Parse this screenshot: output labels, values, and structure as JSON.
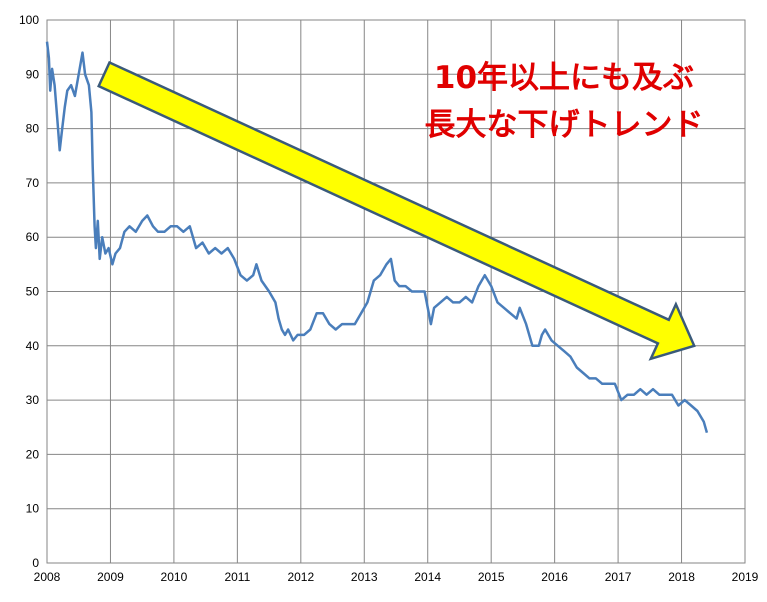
{
  "chart_data": {
    "type": "line",
    "title": "",
    "xlabel": "",
    "ylabel": "",
    "xlim": [
      2008,
      2019
    ],
    "ylim": [
      0,
      100
    ],
    "grid": true,
    "x_ticks": [
      "2008",
      "2009",
      "2010",
      "2011",
      "2012",
      "2013",
      "2014",
      "2015",
      "2016",
      "2017",
      "2018",
      "2019"
    ],
    "y_ticks": [
      "0",
      "10",
      "20",
      "30",
      "40",
      "50",
      "60",
      "70",
      "80",
      "90",
      "100"
    ],
    "series": [
      {
        "color": "#4a7ebb",
        "points": [
          [
            2008.0,
            96
          ],
          [
            2008.03,
            93
          ],
          [
            2008.05,
            87
          ],
          [
            2008.08,
            91
          ],
          [
            2008.12,
            88
          ],
          [
            2008.16,
            82
          ],
          [
            2008.2,
            76
          ],
          [
            2008.24,
            80
          ],
          [
            2008.28,
            84
          ],
          [
            2008.32,
            87
          ],
          [
            2008.38,
            88
          ],
          [
            2008.44,
            86
          ],
          [
            2008.5,
            90
          ],
          [
            2008.56,
            94
          ],
          [
            2008.6,
            90
          ],
          [
            2008.66,
            88
          ],
          [
            2008.7,
            83
          ],
          [
            2008.72,
            73
          ],
          [
            2008.75,
            62
          ],
          [
            2008.77,
            58
          ],
          [
            2008.8,
            63
          ],
          [
            2008.83,
            56
          ],
          [
            2008.87,
            60
          ],
          [
            2008.92,
            57
          ],
          [
            2008.97,
            58
          ],
          [
            2009.03,
            55
          ],
          [
            2009.08,
            57
          ],
          [
            2009.15,
            58
          ],
          [
            2009.22,
            61
          ],
          [
            2009.3,
            62
          ],
          [
            2009.4,
            61
          ],
          [
            2009.5,
            63
          ],
          [
            2009.58,
            64
          ],
          [
            2009.67,
            62
          ],
          [
            2009.75,
            61
          ],
          [
            2009.85,
            61
          ],
          [
            2009.95,
            62
          ],
          [
            2010.05,
            62
          ],
          [
            2010.15,
            61
          ],
          [
            2010.25,
            62
          ],
          [
            2010.35,
            58
          ],
          [
            2010.45,
            59
          ],
          [
            2010.55,
            57
          ],
          [
            2010.65,
            58
          ],
          [
            2010.75,
            57
          ],
          [
            2010.85,
            58
          ],
          [
            2010.95,
            56
          ],
          [
            2011.05,
            53
          ],
          [
            2011.15,
            52
          ],
          [
            2011.25,
            53
          ],
          [
            2011.3,
            55
          ],
          [
            2011.38,
            52
          ],
          [
            2011.5,
            50
          ],
          [
            2011.6,
            48
          ],
          [
            2011.65,
            45
          ],
          [
            2011.7,
            43
          ],
          [
            2011.75,
            42
          ],
          [
            2011.8,
            43
          ],
          [
            2011.88,
            41
          ],
          [
            2011.95,
            42
          ],
          [
            2012.05,
            42
          ],
          [
            2012.15,
            43
          ],
          [
            2012.25,
            46
          ],
          [
            2012.35,
            46
          ],
          [
            2012.45,
            44
          ],
          [
            2012.55,
            43
          ],
          [
            2012.65,
            44
          ],
          [
            2012.75,
            44
          ],
          [
            2012.85,
            44
          ],
          [
            2012.95,
            46
          ],
          [
            2013.05,
            48
          ],
          [
            2013.15,
            52
          ],
          [
            2013.25,
            53
          ],
          [
            2013.35,
            55
          ],
          [
            2013.42,
            56
          ],
          [
            2013.48,
            52
          ],
          [
            2013.55,
            51
          ],
          [
            2013.65,
            51
          ],
          [
            2013.75,
            50
          ],
          [
            2013.85,
            50
          ],
          [
            2013.95,
            50
          ],
          [
            2014.05,
            44
          ],
          [
            2014.1,
            47
          ],
          [
            2014.2,
            48
          ],
          [
            2014.3,
            49
          ],
          [
            2014.4,
            48
          ],
          [
            2014.5,
            48
          ],
          [
            2014.6,
            49
          ],
          [
            2014.7,
            48
          ],
          [
            2014.8,
            51
          ],
          [
            2014.9,
            53
          ],
          [
            2015.0,
            51
          ],
          [
            2015.1,
            48
          ],
          [
            2015.2,
            47
          ],
          [
            2015.3,
            46
          ],
          [
            2015.4,
            45
          ],
          [
            2015.45,
            47
          ],
          [
            2015.55,
            44
          ],
          [
            2015.65,
            40
          ],
          [
            2015.75,
            40
          ],
          [
            2015.8,
            42
          ],
          [
            2015.85,
            43
          ],
          [
            2015.95,
            41
          ],
          [
            2016.05,
            40
          ],
          [
            2016.15,
            39
          ],
          [
            2016.25,
            38
          ],
          [
            2016.35,
            36
          ],
          [
            2016.45,
            35
          ],
          [
            2016.55,
            34
          ],
          [
            2016.65,
            34
          ],
          [
            2016.75,
            33
          ],
          [
            2016.85,
            33
          ],
          [
            2016.95,
            33
          ],
          [
            2017.05,
            30
          ],
          [
            2017.15,
            31
          ],
          [
            2017.25,
            31
          ],
          [
            2017.35,
            32
          ],
          [
            2017.45,
            31
          ],
          [
            2017.55,
            32
          ],
          [
            2017.65,
            31
          ],
          [
            2017.75,
            31
          ],
          [
            2017.85,
            31
          ],
          [
            2017.95,
            29
          ],
          [
            2018.05,
            30
          ],
          [
            2018.15,
            29
          ],
          [
            2018.25,
            28
          ],
          [
            2018.3,
            27
          ],
          [
            2018.35,
            26
          ],
          [
            2018.4,
            24
          ]
        ]
      }
    ],
    "annotation": {
      "lines": [
        "10年以上にも及ぶ",
        "長大な下げトレンド"
      ],
      "color": "#e00000"
    },
    "trend_arrow": {
      "from": [
        2008.9,
        90
      ],
      "to": [
        2018.2,
        40
      ],
      "fill": "#ffff00",
      "stroke": "#3a5a7a"
    }
  }
}
